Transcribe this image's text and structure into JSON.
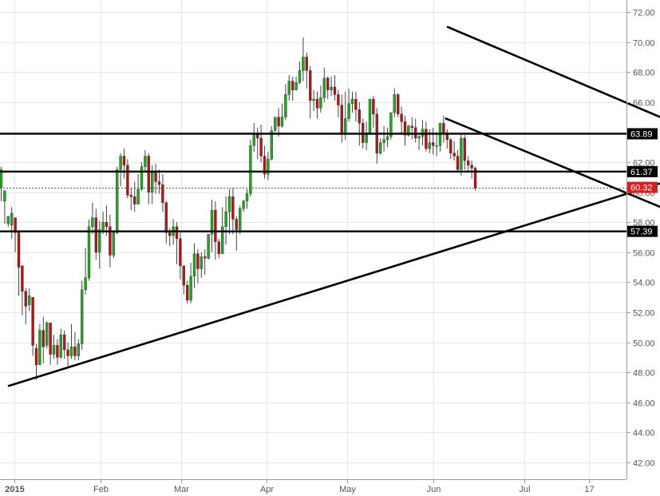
{
  "chart_data": {
    "type": "candlestick",
    "y_axis": {
      "position": "right",
      "ylim": [
        40.6,
        72.9
      ],
      "tick_labels": [
        "42.00",
        "44.00",
        "46.00",
        "48.00",
        "50.00",
        "52.00",
        "54.00",
        "56.00",
        "58.00",
        "60.00",
        "62.00",
        "64.00",
        "66.00",
        "68.00",
        "70.00",
        "72.00"
      ]
    },
    "x_axis": {
      "tick_labels": [
        "2015",
        "Feb",
        "Mar",
        "Apr",
        "May",
        "Jun",
        "Jul",
        "17"
      ]
    },
    "grid": true,
    "colors": {
      "up": "#26a326",
      "down": "#b01818",
      "line": "#000000",
      "grid": "#e6e6e6",
      "last_price": "#d42020"
    },
    "horizontal_levels": [
      {
        "value": 63.89,
        "label": "63.89"
      },
      {
        "value": 61.37,
        "label": "61.37"
      },
      {
        "value": 57.39,
        "label": "57.39"
      }
    ],
    "last_price": {
      "value": 60.32,
      "label": "60.32"
    },
    "trendlines": [
      {
        "from": [
          2.5,
          47.1
        ],
        "to": [
          229.5,
          63.6
        ]
      },
      {
        "from": [
          127.5,
          71.0
        ],
        "to": [
          237.5,
          60.1
        ]
      },
      {
        "from": [
          127.0,
          64.9
        ],
        "to": [
          237.0,
          54.3
        ]
      }
    ],
    "candles": [
      [
        60.3,
        61.7,
        61.5,
        59.4
      ],
      [
        59.4,
        60.1,
        60.1,
        57.9
      ],
      [
        57.9,
        58.4,
        58.4,
        57.7
      ],
      [
        57.8,
        59.0,
        58.6,
        56.9
      ],
      [
        58.3,
        58.3,
        57.3,
        56.0
      ],
      [
        57.3,
        57.4,
        55.0,
        53.1
      ],
      [
        55.1,
        55.1,
        53.4,
        51.8
      ],
      [
        53.4,
        53.6,
        52.4,
        51.2
      ],
      [
        52.5,
        53.6,
        53.1,
        52.1
      ],
      [
        53.0,
        53.0,
        49.8,
        49.1
      ],
      [
        49.6,
        49.9,
        48.5,
        47.5
      ],
      [
        48.5,
        51.2,
        50.8,
        48.5
      ],
      [
        50.8,
        51.7,
        49.7,
        48.6
      ],
      [
        49.8,
        51.4,
        51.3,
        49.6
      ],
      [
        51.3,
        51.3,
        49.2,
        48.5
      ],
      [
        49.2,
        50.5,
        49.8,
        48.9
      ],
      [
        49.8,
        50.2,
        49.0,
        48.5
      ],
      [
        49.0,
        50.9,
        50.5,
        48.9
      ],
      [
        50.5,
        50.8,
        49.5,
        48.9
      ],
      [
        49.5,
        50.0,
        49.1,
        48.4
      ],
      [
        49.1,
        51.2,
        49.7,
        48.9
      ],
      [
        49.7,
        50.7,
        49.1,
        48.8
      ],
      [
        49.1,
        50.2,
        49.9,
        48.8
      ],
      [
        49.9,
        54.1,
        53.5,
        49.5
      ],
      [
        53.5,
        56.3,
        54.3,
        53.2
      ],
      [
        54.3,
        58.2,
        57.7,
        54.1
      ],
      [
        57.7,
        59.3,
        58.3,
        57.2
      ],
      [
        58.3,
        58.9,
        56.0,
        55.5
      ],
      [
        56.0,
        58.1,
        57.5,
        54.9
      ],
      [
        57.5,
        58.7,
        58.0,
        57.2
      ],
      [
        58.0,
        59.1,
        57.7,
        57.1
      ],
      [
        57.7,
        58.5,
        55.8,
        55.0
      ],
      [
        55.8,
        57.4,
        57.3,
        55.6
      ],
      [
        57.3,
        61.7,
        61.5,
        57.2
      ],
      [
        61.5,
        62.6,
        62.4,
        60.4
      ],
      [
        62.4,
        62.9,
        61.8,
        60.9
      ],
      [
        61.8,
        62.2,
        59.8,
        59.6
      ],
      [
        59.8,
        60.3,
        59.7,
        58.8
      ],
      [
        59.7,
        60.7,
        59.2,
        58.7
      ],
      [
        59.2,
        61.2,
        60.2,
        59.2
      ],
      [
        60.2,
        62.0,
        61.7,
        60.1
      ],
      [
        61.7,
        62.8,
        62.4,
        61.3
      ],
      [
        62.4,
        62.6,
        60.0,
        59.2
      ],
      [
        60.0,
        61.8,
        61.3,
        59.2
      ],
      [
        61.3,
        61.9,
        60.7,
        59.9
      ],
      [
        60.7,
        61.5,
        60.5,
        59.9
      ],
      [
        60.5,
        61.2,
        59.3,
        58.7
      ],
      [
        59.3,
        59.4,
        57.3,
        56.6
      ],
      [
        57.3,
        57.6,
        57.1,
        56.4
      ],
      [
        57.1,
        58.2,
        57.7,
        56.5
      ],
      [
        57.7,
        58.0,
        56.9,
        55.2
      ],
      [
        56.9,
        57.3,
        55.1,
        54.2
      ],
      [
        55.1,
        55.1,
        53.8,
        53.2
      ],
      [
        53.8,
        54.1,
        52.8,
        52.6
      ],
      [
        52.8,
        55.3,
        54.4,
        52.6
      ],
      [
        54.4,
        56.6,
        55.9,
        53.6
      ],
      [
        55.9,
        56.2,
        54.9,
        53.9
      ],
      [
        54.9,
        56.0,
        55.7,
        54.3
      ],
      [
        55.7,
        56.2,
        55.6,
        54.5
      ],
      [
        55.6,
        57.2,
        57.2,
        55.5
      ],
      [
        57.2,
        59.5,
        58.8,
        56.0
      ],
      [
        58.8,
        59.4,
        56.7,
        55.5
      ],
      [
        56.7,
        56.9,
        55.9,
        55.6
      ],
      [
        55.9,
        59.0,
        57.7,
        55.9
      ],
      [
        57.7,
        59.7,
        58.7,
        56.5
      ],
      [
        58.7,
        60.2,
        59.7,
        57.2
      ],
      [
        59.7,
        60.3,
        58.2,
        57.2
      ],
      [
        58.2,
        58.4,
        57.5,
        56.1
      ],
      [
        57.5,
        59.1,
        58.9,
        57.2
      ],
      [
        58.9,
        59.5,
        59.4,
        58.7
      ],
      [
        59.4,
        60.2,
        59.9,
        58.9
      ],
      [
        59.9,
        63.5,
        63.1,
        59.7
      ],
      [
        63.1,
        64.6,
        63.9,
        62.7
      ],
      [
        63.9,
        64.3,
        63.6,
        62.2
      ],
      [
        63.6,
        64.5,
        62.4,
        62.0
      ],
      [
        62.4,
        63.1,
        61.2,
        60.9
      ],
      [
        61.2,
        62.7,
        62.2,
        60.8
      ],
      [
        62.2,
        64.4,
        64.1,
        62.1
      ],
      [
        64.1,
        65.0,
        65.0,
        64.0
      ],
      [
        65.0,
        65.6,
        64.4,
        63.7
      ],
      [
        64.4,
        65.9,
        65.0,
        64.3
      ],
      [
        65.0,
        67.2,
        66.5,
        64.8
      ],
      [
        66.5,
        67.8,
        67.4,
        66.1
      ],
      [
        67.4,
        67.7,
        66.8,
        66.1
      ],
      [
        66.8,
        67.7,
        67.3,
        66.8
      ],
      [
        67.3,
        68.7,
        68.1,
        67.2
      ],
      [
        68.1,
        70.3,
        69.0,
        67.4
      ],
      [
        69.0,
        69.3,
        68.1,
        66.9
      ],
      [
        68.1,
        68.4,
        66.1,
        64.9
      ],
      [
        66.1,
        66.8,
        66.2,
        65.4
      ],
      [
        66.2,
        66.7,
        65.6,
        64.9
      ],
      [
        65.6,
        67.1,
        66.3,
        65.3
      ],
      [
        66.3,
        68.3,
        67.6,
        66.0
      ],
      [
        67.6,
        67.7,
        66.8,
        66.2
      ],
      [
        66.8,
        67.7,
        67.0,
        66.4
      ],
      [
        67.0,
        67.8,
        66.5,
        66.1
      ],
      [
        66.5,
        66.8,
        65.8,
        65.0
      ],
      [
        65.8,
        66.5,
        63.9,
        63.3
      ],
      [
        63.9,
        66.7,
        64.9,
        63.5
      ],
      [
        64.9,
        66.9,
        65.9,
        64.7
      ],
      [
        65.9,
        66.7,
        66.2,
        65.3
      ],
      [
        66.2,
        66.7,
        65.5,
        64.7
      ],
      [
        65.5,
        66.0,
        64.6,
        63.1
      ],
      [
        64.6,
        64.9,
        63.3,
        62.9
      ],
      [
        63.3,
        64.7,
        63.9,
        62.8
      ],
      [
        63.9,
        66.0,
        66.2,
        63.8
      ],
      [
        66.2,
        66.4,
        65.2,
        64.3
      ],
      [
        65.2,
        65.6,
        62.6,
        61.9
      ],
      [
        62.6,
        63.6,
        63.3,
        62.5
      ],
      [
        63.3,
        64.4,
        63.5,
        62.7
      ],
      [
        63.5,
        64.3,
        63.7,
        63.0
      ],
      [
        63.7,
        65.1,
        65.3,
        63.5
      ],
      [
        65.3,
        66.9,
        66.5,
        65.0
      ],
      [
        66.5,
        66.6,
        65.2,
        65.0
      ],
      [
        65.2,
        65.7,
        64.7,
        63.9
      ],
      [
        64.7,
        65.1,
        63.8,
        63.1
      ],
      [
        63.8,
        64.5,
        64.4,
        63.7
      ],
      [
        64.4,
        65.0,
        64.3,
        63.5
      ],
      [
        64.3,
        64.9,
        63.6,
        63.3
      ],
      [
        63.6,
        63.8,
        63.7,
        62.8
      ],
      [
        63.7,
        64.8,
        64.2,
        63.1
      ],
      [
        64.2,
        64.7,
        62.9,
        62.7
      ],
      [
        62.9,
        64.2,
        63.3,
        62.6
      ],
      [
        63.3,
        64.3,
        63.1,
        62.5
      ],
      [
        63.1,
        64.0,
        63.1,
        62.4
      ],
      [
        63.1,
        64.4,
        64.6,
        62.7
      ],
      [
        64.6,
        65.1,
        63.9,
        63.3
      ],
      [
        63.9,
        64.2,
        63.5,
        62.9
      ],
      [
        63.5,
        63.6,
        62.6,
        62.2
      ],
      [
        62.6,
        63.4,
        62.4,
        62.1
      ],
      [
        62.4,
        62.8,
        61.5,
        61.3
      ],
      [
        61.5,
        63.9,
        63.6,
        61.1
      ],
      [
        63.6,
        63.8,
        62.1,
        61.5
      ],
      [
        62.1,
        62.4,
        61.8,
        61.3
      ],
      [
        61.8,
        62.1,
        61.6,
        60.9
      ],
      [
        61.6,
        61.7,
        60.3,
        60.1
      ]
    ]
  }
}
